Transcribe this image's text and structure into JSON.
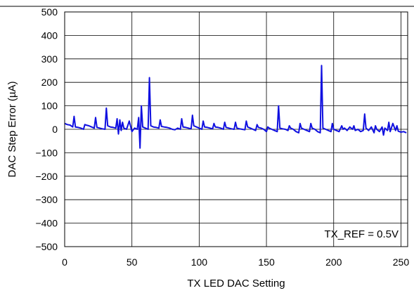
{
  "chart_data": {
    "type": "line",
    "title": "",
    "xlabel": "TX LED DAC Setting",
    "ylabel": "DAC Step Error (µA)",
    "xlim": [
      0,
      255
    ],
    "ylim": [
      -500,
      500
    ],
    "x_ticks": [
      0,
      50,
      100,
      150,
      200,
      250
    ],
    "y_ticks": [
      500,
      400,
      300,
      200,
      100,
      0,
      -100,
      -200,
      -300,
      -400,
      -500
    ],
    "x_tick_labels": [
      "0",
      "50",
      "100",
      "150",
      "200",
      "250"
    ],
    "y_tick_labels": [
      "500",
      "400",
      "300",
      "200",
      "100",
      "0",
      "−100",
      "−200",
      "−300",
      "−400",
      "−500"
    ],
    "grid": true,
    "annotation": "TX_REF = 0.5V",
    "line_color": "#1010e0",
    "series": [
      {
        "x": [
          0,
          2,
          4,
          6,
          7,
          8,
          10,
          12,
          14,
          15,
          16,
          18,
          20,
          22,
          23,
          24,
          26,
          28,
          30,
          31,
          32,
          34,
          36,
          38,
          39,
          40,
          41,
          42,
          43,
          44,
          46,
          48,
          50,
          52,
          54,
          55,
          56,
          57,
          58,
          60,
          62,
          63,
          64,
          66,
          68,
          70,
          71,
          72,
          74,
          76,
          78,
          80,
          82,
          84,
          86,
          87,
          88,
          90,
          92,
          94,
          95,
          96,
          98,
          100,
          102,
          103,
          104,
          106,
          108,
          110,
          111,
          112,
          114,
          116,
          118,
          119,
          120,
          122,
          124,
          126,
          127,
          128,
          130,
          132,
          134,
          135,
          136,
          138,
          140,
          142,
          143,
          144,
          146,
          148,
          150,
          151,
          152,
          154,
          156,
          158,
          159,
          160,
          162,
          164,
          166,
          167,
          168,
          170,
          172,
          174,
          175,
          176,
          178,
          180,
          182,
          183,
          184,
          186,
          188,
          190,
          191,
          192,
          194,
          196,
          198,
          199,
          200,
          202,
          204,
          206,
          207,
          208,
          210,
          212,
          214,
          215,
          216,
          218,
          220,
          222,
          223,
          224,
          226,
          228,
          230,
          231,
          232,
          234,
          236,
          237,
          238,
          240,
          241,
          242,
          244,
          246,
          247,
          248,
          250,
          252,
          254
        ],
        "y": [
          25,
          20,
          18,
          10,
          55,
          10,
          8,
          5,
          0,
          20,
          18,
          15,
          10,
          5,
          50,
          8,
          5,
          2,
          0,
          90,
          15,
          10,
          8,
          5,
          45,
          -20,
          40,
          -5,
          30,
          5,
          0,
          35,
          -10,
          5,
          0,
          50,
          -80,
          100,
          10,
          5,
          0,
          220,
          15,
          10,
          8,
          5,
          40,
          12,
          10,
          8,
          5,
          0,
          -2,
          5,
          0,
          45,
          10,
          8,
          5,
          2,
          60,
          15,
          10,
          5,
          0,
          35,
          10,
          8,
          5,
          2,
          25,
          10,
          8,
          5,
          0,
          30,
          8,
          5,
          2,
          0,
          30,
          5,
          2,
          0,
          -2,
          35,
          10,
          5,
          0,
          -5,
          20,
          8,
          5,
          0,
          -10,
          10,
          5,
          0,
          -5,
          -10,
          100,
          5,
          2,
          0,
          -5,
          15,
          5,
          0,
          -10,
          -15,
          25,
          5,
          0,
          -5,
          -10,
          25,
          5,
          0,
          -10,
          -15,
          272,
          5,
          0,
          -5,
          -10,
          25,
          0,
          -5,
          -10,
          15,
          0,
          5,
          -5,
          10,
          0,
          15,
          -5,
          0,
          -10,
          -5,
          65,
          5,
          -5,
          10,
          -15,
          15,
          0,
          -10,
          10,
          -25,
          5,
          -5,
          30,
          -10,
          25,
          -5,
          15,
          -8,
          -12,
          -10,
          -15
        ]
      }
    ]
  }
}
